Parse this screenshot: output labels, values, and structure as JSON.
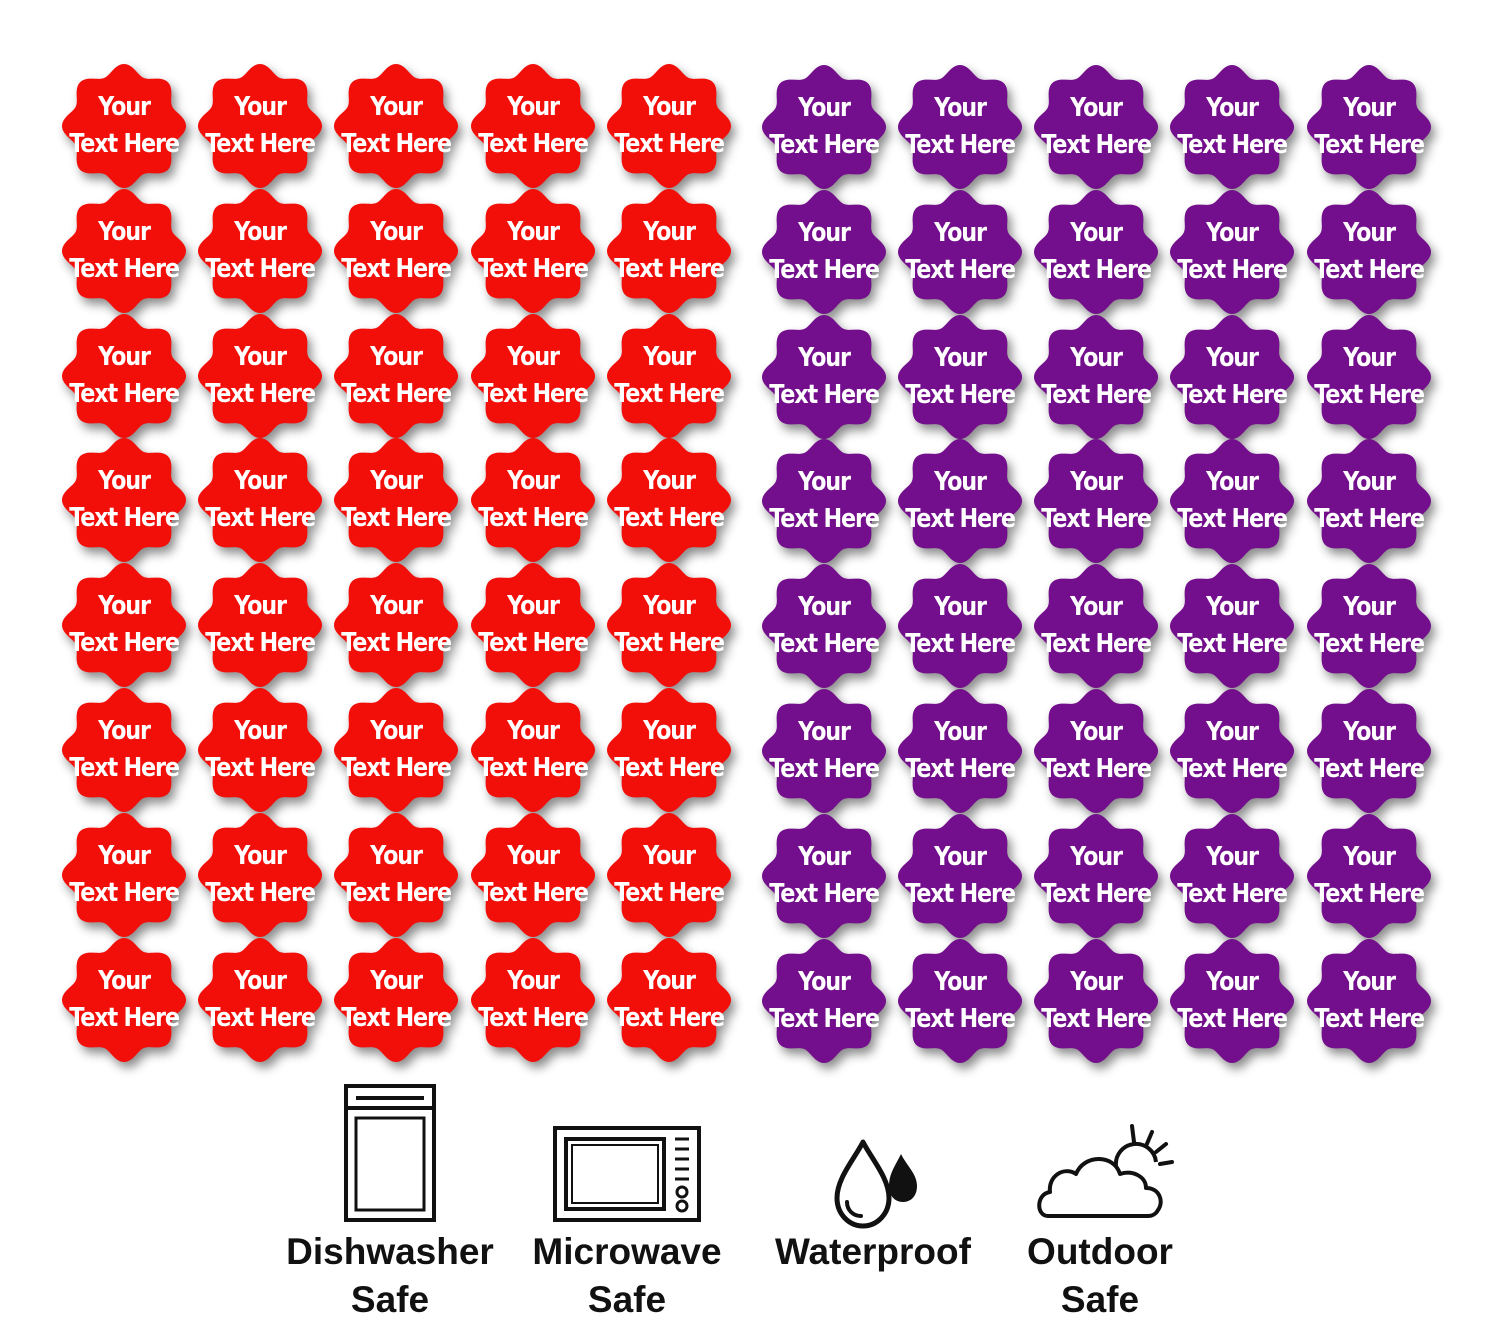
{
  "sticker_text": {
    "line1": "Your",
    "line2": "Text Here"
  },
  "colors": {
    "red": "#f20f0a",
    "purple": "#730f8c",
    "icon_stroke": "#111111"
  },
  "sheets": [
    {
      "name": "red",
      "color": "#f20f0a",
      "rows": 8,
      "columns": 5
    },
    {
      "name": "purple",
      "color": "#730f8c",
      "rows": 8,
      "columns": 5
    }
  ],
  "features": [
    {
      "icon": "dishwasher-icon",
      "line1": "Dishwasher",
      "line2": "Safe"
    },
    {
      "icon": "microwave-icon",
      "line1": "Microwave",
      "line2": "Safe"
    },
    {
      "icon": "water-drops-icon",
      "line1": "Waterproof",
      "line2": ""
    },
    {
      "icon": "cloud-sun-icon",
      "line1": "Outdoor",
      "line2": "Safe"
    }
  ]
}
